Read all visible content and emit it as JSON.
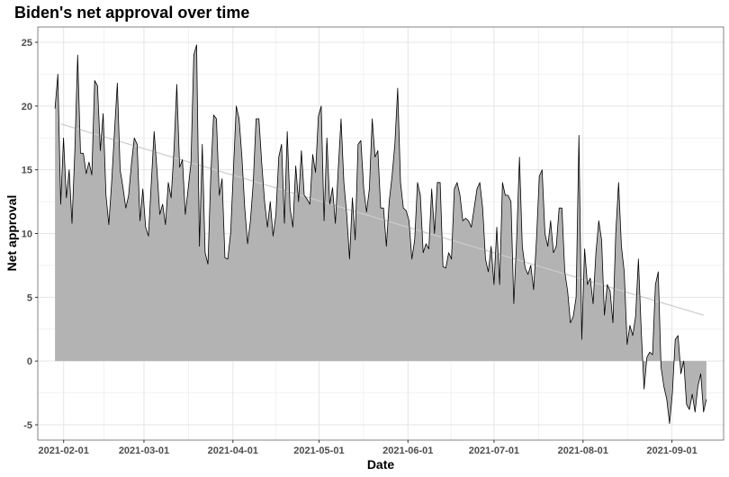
{
  "chart_data": {
    "type": "area",
    "title": "Biden's net approval over time",
    "xlabel": "Date",
    "ylabel": "Net approval",
    "x_start": "2021-01-29",
    "x_end": "2021-09-13",
    "xlim": [
      "2021-01-23",
      "2021-09-19"
    ],
    "ylim": [
      -6.2,
      26.2
    ],
    "x_ticks": [
      "2021-02-01",
      "2021-03-01",
      "2021-04-01",
      "2021-05-01",
      "2021-06-01",
      "2021-07-01",
      "2021-08-01",
      "2021-09-01"
    ],
    "y_ticks": [
      -5,
      0,
      5,
      10,
      15,
      20,
      25
    ],
    "grid": true,
    "colors": {
      "area": "#b3b3b3",
      "line": "#000000",
      "trend": "#cccccc",
      "grid": "#e5e5e5"
    },
    "trend": {
      "start": [
        "2021-01-31",
        18.6
      ],
      "end": [
        "2021-09-12",
        3.6
      ]
    },
    "series": [
      {
        "values": [
          19.8,
          22.5,
          12.3,
          17.5,
          12.8,
          15.0,
          10.8,
          16.5,
          24.0,
          16.3,
          16.3,
          14.7,
          15.6,
          14.6,
          22.0,
          21.6,
          16.5,
          19.4,
          13.0,
          10.7,
          14.0,
          18.0,
          21.8,
          15.0,
          13.6,
          12.0,
          13.0,
          15.5,
          17.5,
          17.0,
          11.0,
          13.5,
          10.5,
          9.8,
          14.0,
          18.0,
          15.0,
          11.5,
          12.3,
          10.7,
          14.0,
          12.8,
          16.5,
          21.7,
          15.2,
          15.8,
          11.5,
          13.5,
          15.5,
          24.0,
          24.8,
          9.0,
          17.0,
          8.5,
          7.6,
          14.5,
          19.3,
          19.0,
          13.0,
          14.3,
          8.1,
          8.0,
          10.0,
          15.0,
          20.0,
          19.0,
          16.0,
          12.0,
          9.2,
          11.0,
          14.0,
          19.0,
          19.0,
          15.5,
          12.5,
          10.5,
          12.5,
          9.8,
          11.5,
          16.0,
          17.0,
          10.8,
          18.0,
          12.0,
          10.5,
          15.3,
          12.5,
          16.5,
          13.0,
          12.7,
          12.3,
          16.2,
          14.8,
          19.2,
          20.0,
          11.0,
          17.5,
          12.3,
          13.6,
          10.8,
          15.0,
          19.0,
          14.0,
          11.5,
          8.0,
          12.8,
          9.5,
          17.0,
          17.3,
          13.5,
          11.7,
          13.5,
          19.0,
          16.0,
          16.5,
          12.0,
          12.0,
          9.0,
          12.5,
          14.5,
          17.0,
          21.4,
          14.0,
          12.0,
          11.8,
          11.0,
          8.0,
          9.5,
          14.0,
          13.0,
          8.5,
          9.2,
          8.8,
          13.5,
          10.0,
          14.0,
          14.0,
          7.4,
          7.3,
          8.5,
          8.0,
          13.5,
          14.0,
          13.0,
          11.0,
          11.2,
          11.0,
          10.5,
          12.0,
          13.5,
          14.0,
          12.0,
          8.0,
          7.0,
          9.0,
          6.0,
          10.5,
          6.0,
          14.0,
          13.0,
          13.0,
          12.5,
          4.5,
          9.5,
          16.0,
          9.0,
          7.3,
          6.8,
          7.5,
          5.6,
          9.5,
          14.5,
          15.0,
          10.0,
          9.0,
          11.0,
          8.5,
          9.0,
          12.0,
          12.0,
          7.0,
          5.5,
          3.0,
          3.5,
          5.0,
          17.7,
          1.7,
          8.8,
          6.0,
          6.5,
          4.5,
          8.5,
          11.0,
          9.5,
          3.6,
          6.0,
          5.5,
          3.0,
          10.0,
          14.0,
          9.0,
          7.0,
          1.3,
          2.8,
          2.0,
          3.5,
          8.0,
          2.4,
          -2.2,
          0.3,
          0.7,
          0.5,
          6.0,
          7.0,
          -0.5,
          -2.0,
          -3.0,
          -4.9,
          -2.5,
          1.7,
          2.0,
          -1.0,
          0.0,
          -3.4,
          -3.8,
          -2.6,
          -4.0,
          -2.0,
          -1.0,
          -4.0,
          -3.0
        ]
      }
    ]
  }
}
